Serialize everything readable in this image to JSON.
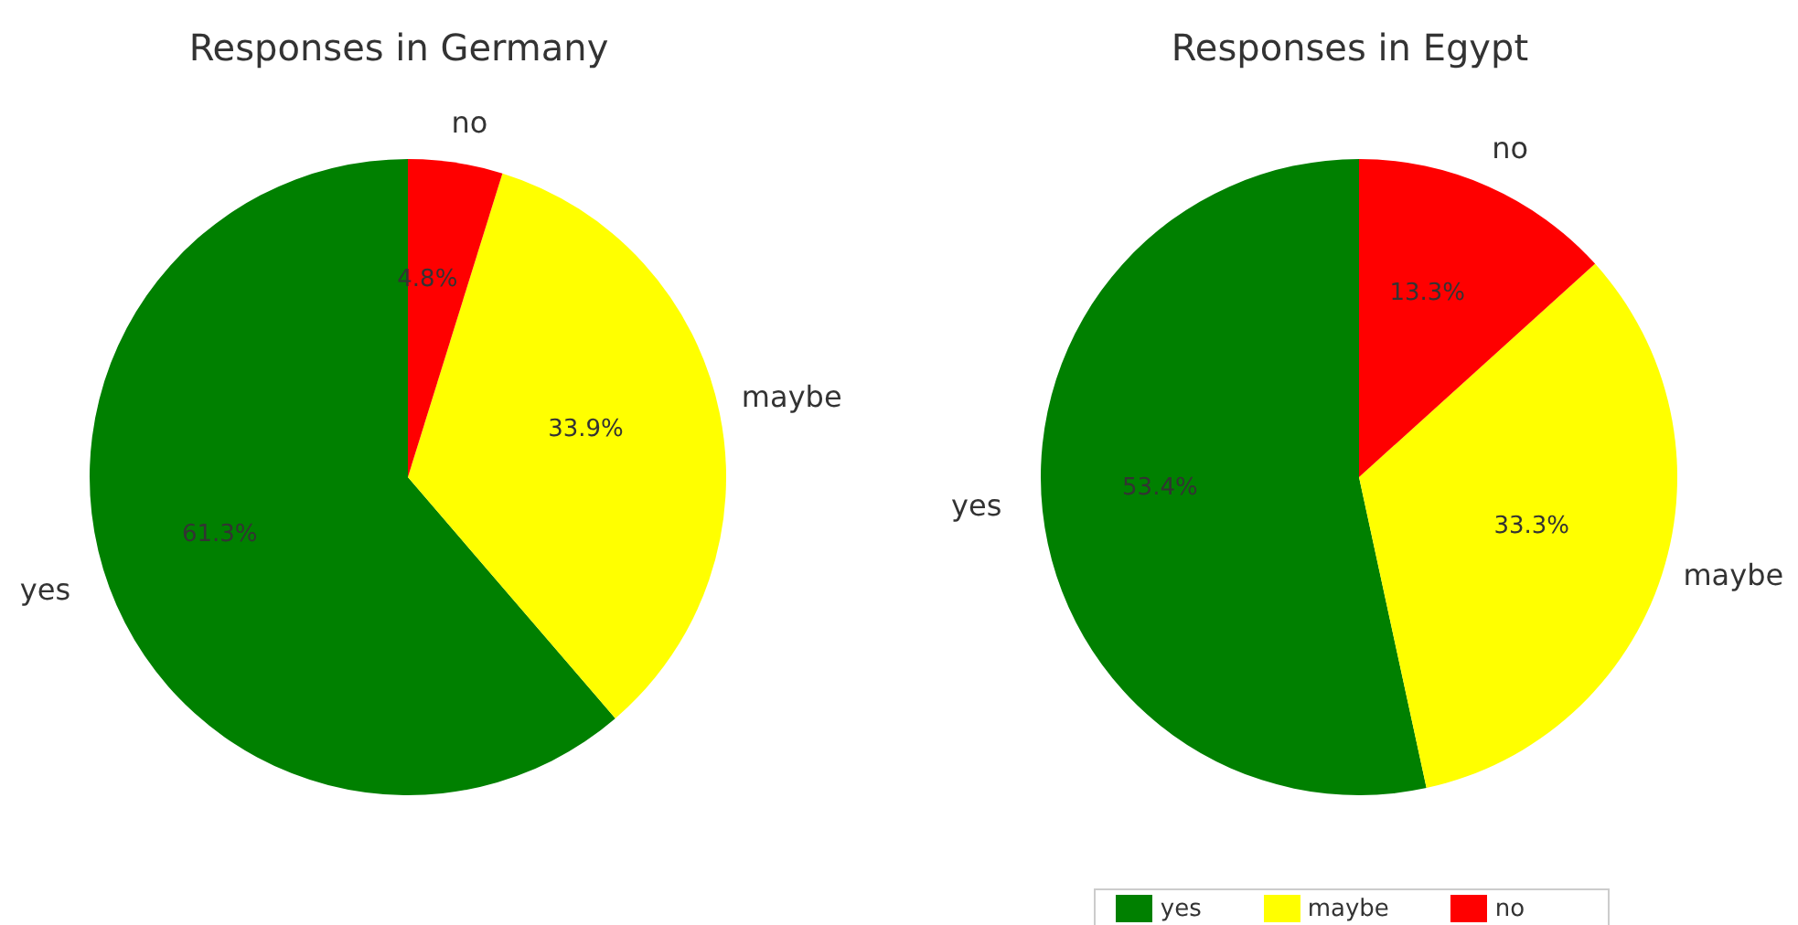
{
  "chart_data": [
    {
      "type": "pie",
      "title": "Responses in Germany",
      "categories": [
        "yes",
        "maybe",
        "no"
      ],
      "values": [
        61.3,
        33.9,
        4.8
      ],
      "colors": [
        "#008000",
        "#ffff00",
        "#ff0000"
      ],
      "value_labels": [
        "61.3%",
        "33.9%",
        "4.8%"
      ]
    },
    {
      "type": "pie",
      "title": "Responses in Egypt",
      "categories": [
        "yes",
        "maybe",
        "no"
      ],
      "values": [
        53.4,
        33.3,
        13.3
      ],
      "colors": [
        "#008000",
        "#ffff00",
        "#ff0000"
      ],
      "value_labels": [
        "53.4%",
        "33.3%",
        "13.3%"
      ],
      "legend": "bottom"
    }
  ]
}
